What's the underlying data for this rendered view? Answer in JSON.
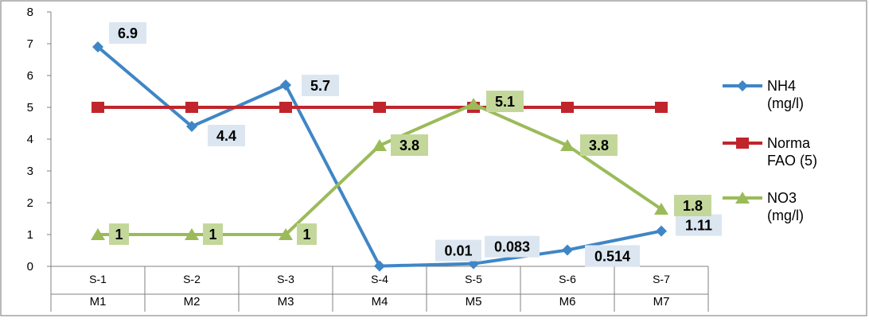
{
  "chart_data": {
    "type": "line",
    "categories": [
      [
        "S-1",
        "M1"
      ],
      [
        "S-2",
        "M2"
      ],
      [
        "S-3",
        "M3"
      ],
      [
        "S-4",
        "M4"
      ],
      [
        "S-5",
        "M5"
      ],
      [
        "S-6",
        "M6"
      ],
      [
        "S-7",
        "M7"
      ]
    ],
    "ylim": [
      0,
      8
    ],
    "yticks": [
      0,
      1,
      2,
      3,
      4,
      5,
      6,
      7,
      8
    ],
    "grid": false,
    "legend_position": "right",
    "series": [
      {
        "name": [
          "NH4",
          "(mg/l)"
        ],
        "color": "#3F86C6",
        "marker": "diamond",
        "values": [
          6.9,
          4.4,
          5.7,
          0.01,
          0.083,
          0.514,
          1.11
        ],
        "labels": [
          "6.9",
          "4.4",
          "5.7",
          "0.01",
          "0.083",
          "0.514",
          "1.11"
        ],
        "label_bg": "#DCE6F1"
      },
      {
        "name": [
          "Norma",
          "FAO (5)"
        ],
        "color": "#C0252C",
        "marker": "square",
        "values": [
          5,
          5,
          5,
          5,
          5,
          5,
          5
        ],
        "labels": [],
        "label_bg": ""
      },
      {
        "name": [
          "NO3",
          "(mg/l)"
        ],
        "color": "#9BBB59",
        "marker": "triangle",
        "values": [
          1,
          1,
          1,
          3.8,
          5.1,
          3.8,
          1.8
        ],
        "labels": [
          "1",
          "1",
          "1",
          "3.8",
          "5.1",
          "3.8",
          "1.8"
        ],
        "label_bg": "#C4D79B"
      }
    ]
  }
}
